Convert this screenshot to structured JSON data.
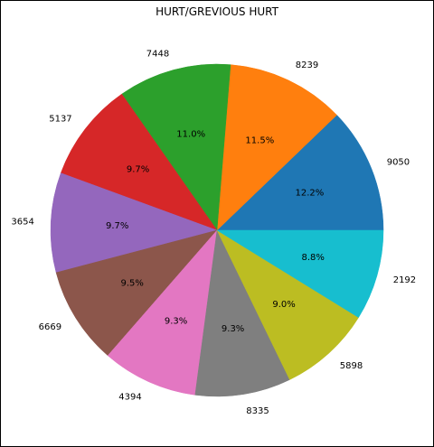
{
  "chart_data": {
    "type": "pie",
    "title": "HURT/GREVIOUS HURT",
    "start_angle_deg": 0,
    "direction": "counterclockwise",
    "slices": [
      {
        "label": "9050",
        "percent": 12.2,
        "pct_text": "12.2%",
        "color": "#1f77b4"
      },
      {
        "label": "8239",
        "percent": 11.5,
        "pct_text": "11.5%",
        "color": "#ff7f0e"
      },
      {
        "label": "7448",
        "percent": 11.0,
        "pct_text": "11.0%",
        "color": "#2ca02c"
      },
      {
        "label": "5137",
        "percent": 9.7,
        "pct_text": "9.7%",
        "color": "#d62728"
      },
      {
        "label": "3654",
        "percent": 9.7,
        "pct_text": "9.7%",
        "color": "#9467bd"
      },
      {
        "label": "6669",
        "percent": 9.5,
        "pct_text": "9.5%",
        "color": "#8c564b"
      },
      {
        "label": "4394",
        "percent": 9.3,
        "pct_text": "9.3%",
        "color": "#e377c2"
      },
      {
        "label": "8335",
        "percent": 9.3,
        "pct_text": "9.3%",
        "color": "#7f7f7f"
      },
      {
        "label": "5898",
        "percent": 9.0,
        "pct_text": "9.0%",
        "color": "#bcbd22"
      },
      {
        "label": "2192",
        "percent": 8.8,
        "pct_text": "8.8%",
        "color": "#17becf"
      }
    ]
  }
}
